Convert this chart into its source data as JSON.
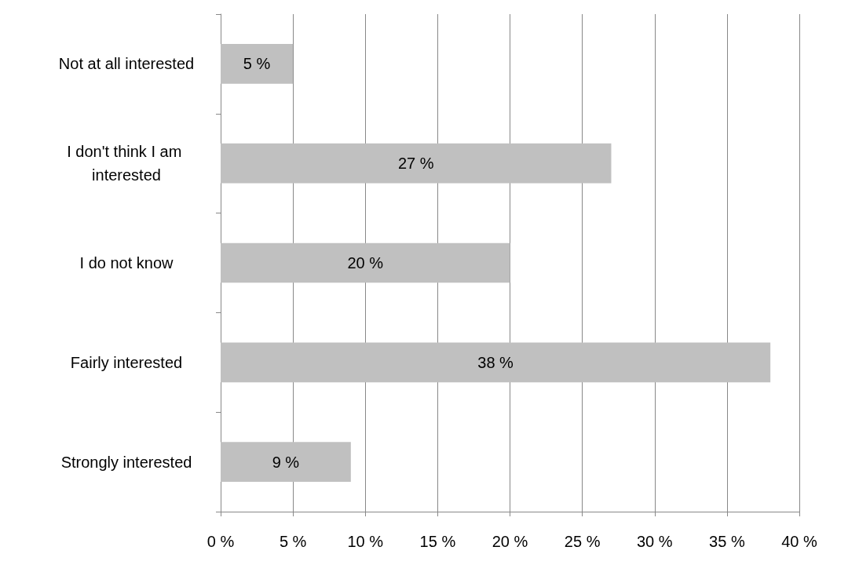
{
  "chart_data": {
    "type": "bar",
    "orientation": "horizontal",
    "categories": [
      "Not at all interested",
      "I don't think I am interested",
      "I do not know",
      "Fairly interested",
      "Strongly interested"
    ],
    "values": [
      5,
      27,
      20,
      38,
      9
    ],
    "value_labels": [
      "5 %",
      "27 %",
      "20 %",
      "38 %",
      "9 %"
    ],
    "color": "#c0c0c0",
    "xlim": [
      0,
      40
    ],
    "xticks": [
      {
        "value": 0,
        "label": "0 %"
      },
      {
        "value": 5,
        "label": "5 %"
      },
      {
        "value": 10,
        "label": "10 %"
      },
      {
        "value": 15,
        "label": "15 %"
      },
      {
        "value": 20,
        "label": "20 %"
      },
      {
        "value": 25,
        "label": "25 %"
      },
      {
        "value": 30,
        "label": "30 %"
      },
      {
        "value": 35,
        "label": "35 %"
      },
      {
        "value": 40,
        "label": "40 %"
      }
    ],
    "grid": "x"
  }
}
